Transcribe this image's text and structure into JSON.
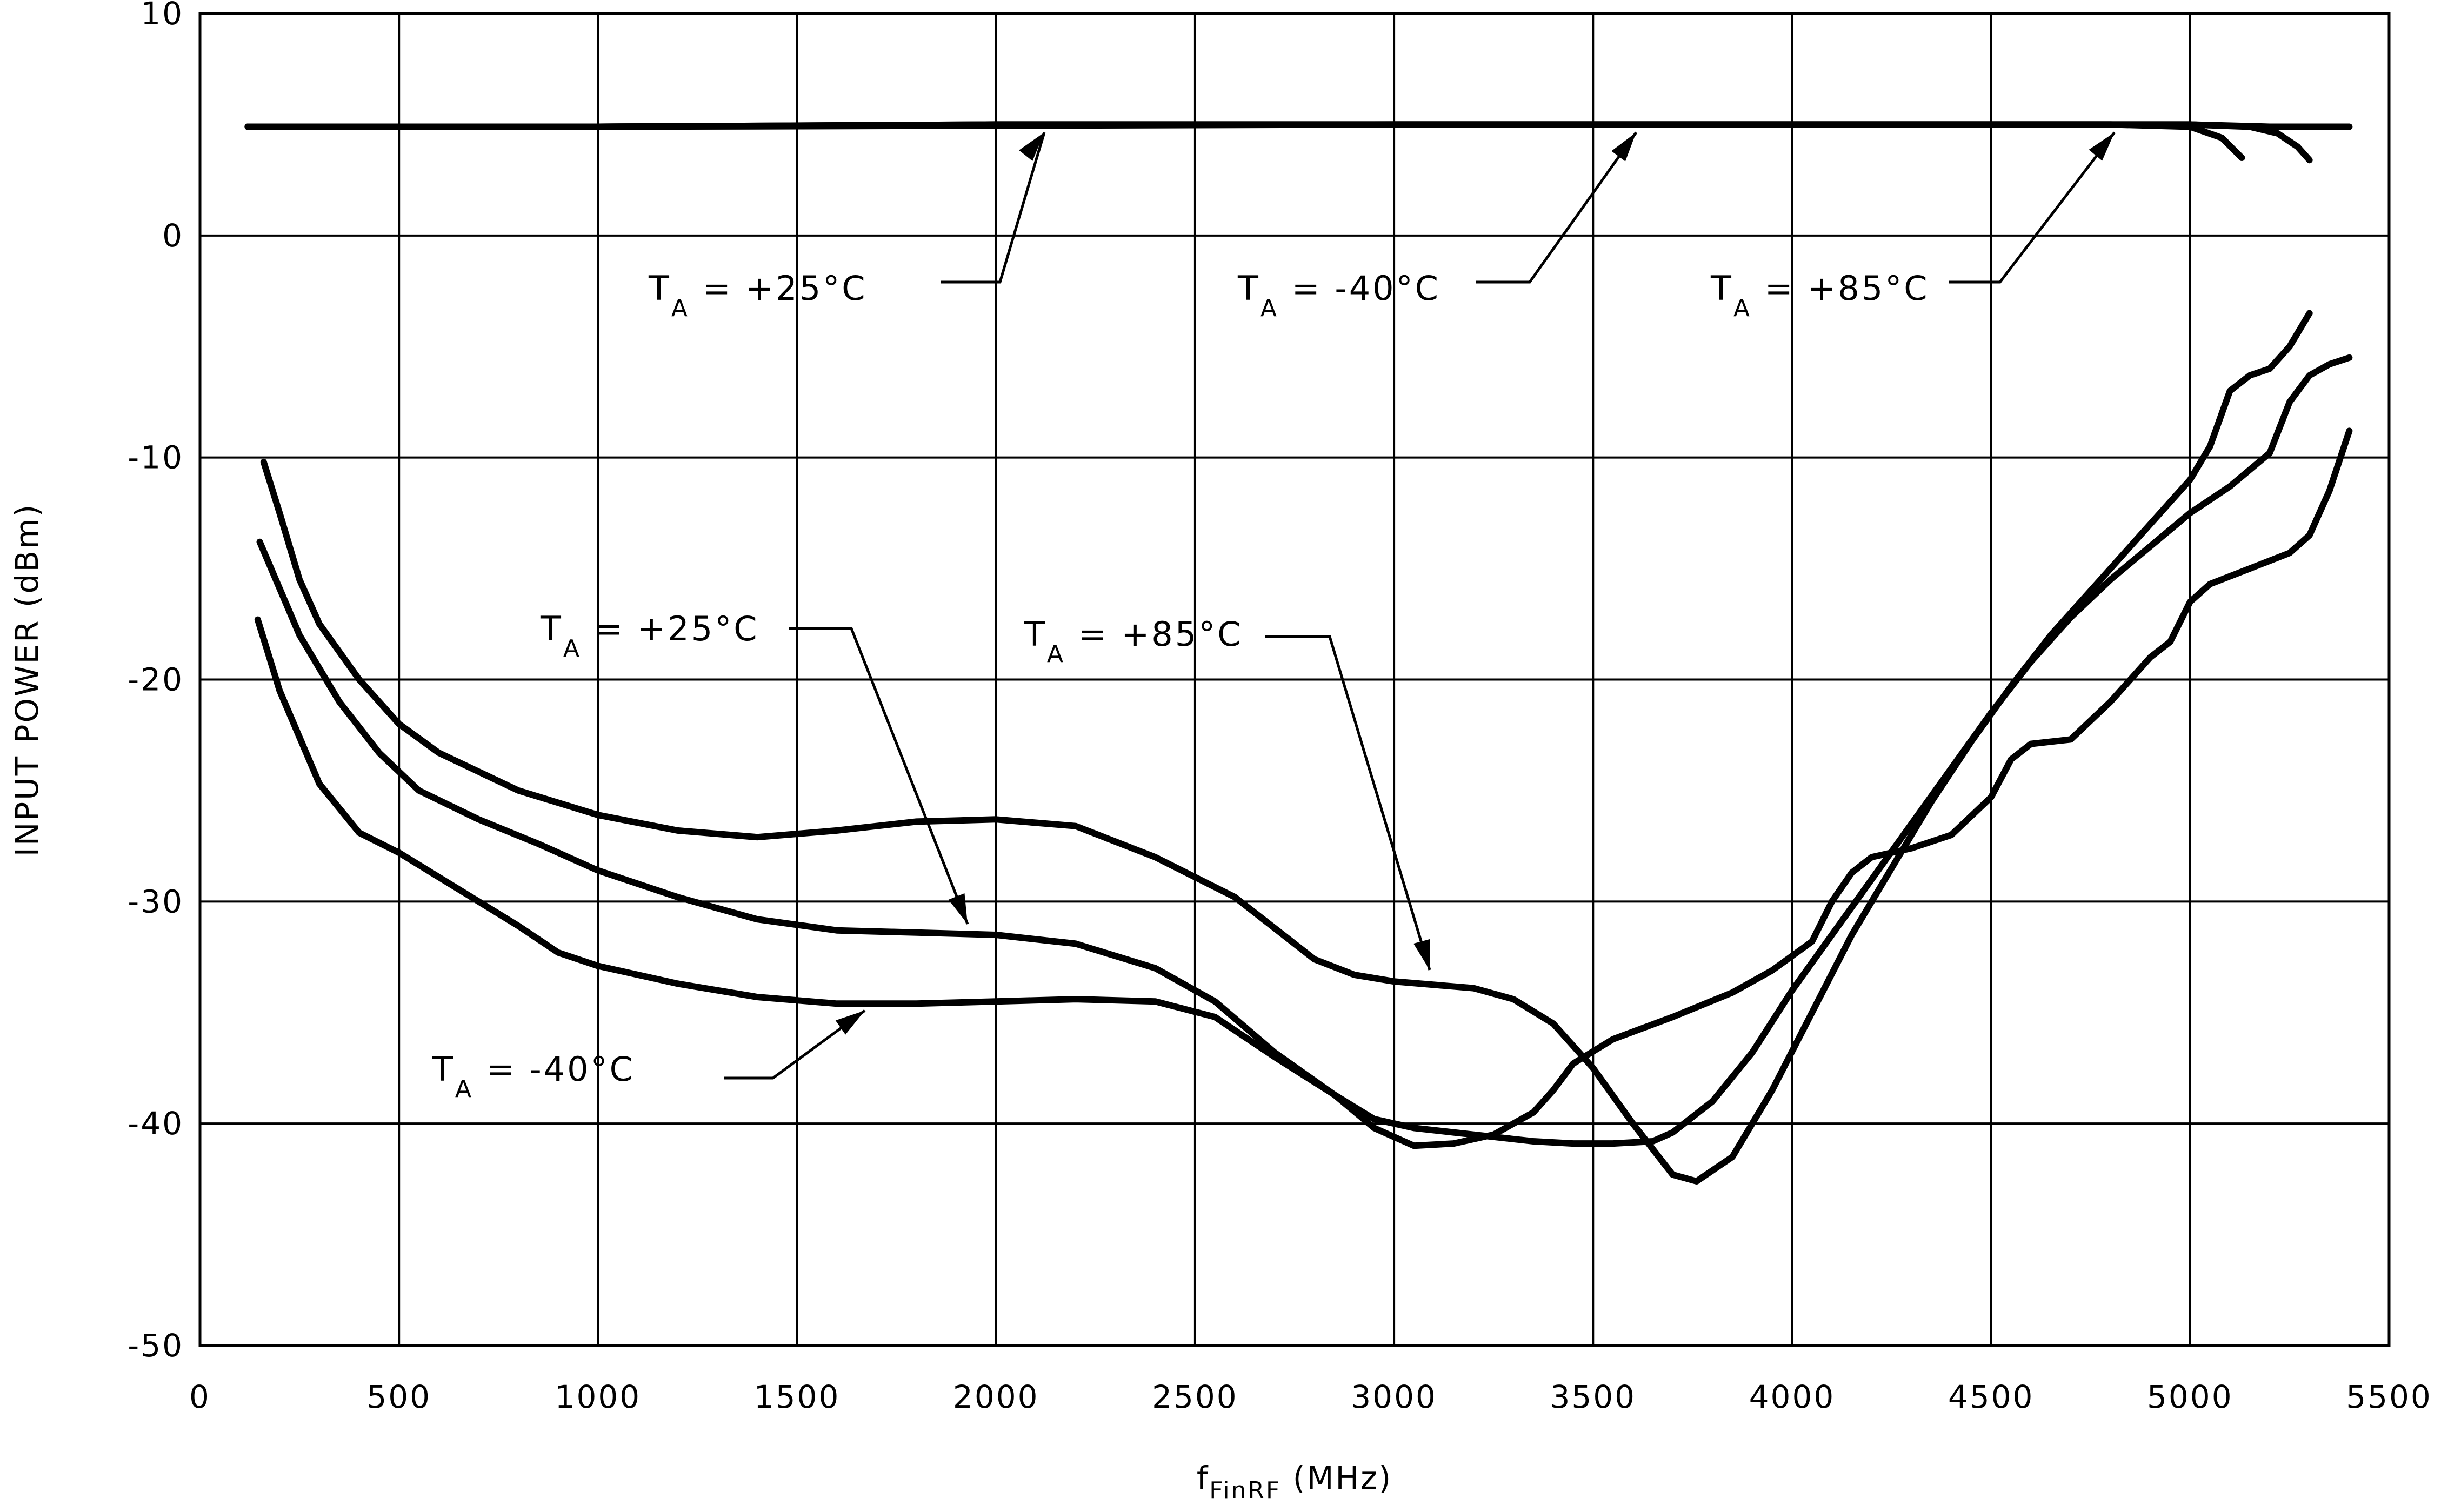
{
  "chart_data": {
    "type": "line",
    "title": "",
    "xlabel": "f",
    "xlabel_sub": "FinRF",
    "xlabel_unit": " (MHz)",
    "ylabel": "INPUT POWER (dBm)",
    "xlim": [
      0,
      5500
    ],
    "ylim": [
      -50,
      10
    ],
    "xticks": [
      0,
      500,
      1000,
      1500,
      2000,
      2500,
      3000,
      3500,
      4000,
      4500,
      5000,
      5500
    ],
    "yticks": [
      -50,
      -40,
      -30,
      -20,
      -10,
      0,
      10
    ],
    "grid": true,
    "series": [
      {
        "group": "upper",
        "temp": "+25°C",
        "x": [
          120,
          500,
          1000,
          1500,
          2000,
          2500,
          3000,
          3500,
          4000,
          4500,
          4800,
          5000,
          5080,
          5130
        ],
        "y": [
          4.9,
          4.9,
          4.9,
          4.95,
          5.0,
          5.0,
          5.0,
          5.0,
          5.0,
          5.0,
          5.0,
          4.9,
          4.4,
          3.5
        ]
      },
      {
        "group": "upper",
        "temp": "-40°C",
        "x": [
          120,
          1000,
          2000,
          3000,
          4000,
          5000,
          5200,
          5400
        ],
        "y": [
          4.9,
          4.9,
          4.95,
          5.0,
          5.0,
          5.0,
          4.9,
          4.9
        ]
      },
      {
        "group": "upper",
        "temp": "+85°C",
        "x": [
          120,
          1000,
          2000,
          3000,
          4000,
          5000,
          5150,
          5220,
          5270,
          5300
        ],
        "y": [
          4.9,
          4.9,
          5.0,
          5.0,
          5.0,
          5.0,
          4.9,
          4.6,
          4.0,
          3.4
        ]
      },
      {
        "group": "lower",
        "temp": "+85°C",
        "x": [
          160,
          200,
          250,
          300,
          400,
          500,
          600,
          800,
          1000,
          1200,
          1400,
          1600,
          1800,
          2000,
          2200,
          2400,
          2600,
          2700,
          2800,
          2900,
          3000,
          3200,
          3300,
          3400,
          3500,
          3600,
          3700,
          3760,
          3850,
          3950,
          4050,
          4150,
          4250,
          4350,
          4450,
          4550,
          4650,
          4750,
          4850,
          4950,
          5000,
          5050,
          5100,
          5150,
          5200,
          5250,
          5300
        ],
        "y": [
          -10.2,
          -12.5,
          -15.5,
          -17.5,
          -20,
          -22,
          -23.3,
          -25,
          -26.1,
          -26.8,
          -27.1,
          -26.8,
          -26.4,
          -26.3,
          -26.6,
          -28,
          -29.8,
          -31.2,
          -32.6,
          -33.3,
          -33.6,
          -33.9,
          -34.4,
          -35.5,
          -37.5,
          -40,
          -42.3,
          -42.6,
          -41.5,
          -38.5,
          -35,
          -31.5,
          -28.5,
          -25.5,
          -22.8,
          -20.3,
          -18,
          -16,
          -14,
          -12,
          -11,
          -9.5,
          -7,
          -6.3,
          -6,
          -5,
          -3.5
        ]
      },
      {
        "group": "lower",
        "temp": "+25°C",
        "x": [
          150,
          250,
          350,
          450,
          550,
          700,
          850,
          1000,
          1200,
          1400,
          1600,
          1800,
          2000,
          2200,
          2400,
          2550,
          2700,
          2850,
          2950,
          3050,
          3150,
          3250,
          3350,
          3450,
          3550,
          3650,
          3700,
          3800,
          3900,
          4000,
          4100,
          4200,
          4300,
          4400,
          4500,
          4600,
          4700,
          4800,
          4900,
          5000,
          5100,
          5200,
          5250,
          5300,
          5350,
          5400
        ],
        "y": [
          -13.8,
          -18,
          -21,
          -23.3,
          -25,
          -26.3,
          -27.4,
          -28.6,
          -29.8,
          -30.8,
          -31.3,
          -31.4,
          -31.5,
          -31.9,
          -33,
          -34.5,
          -36.8,
          -38.7,
          -39.8,
          -40.2,
          -40.4,
          -40.6,
          -40.8,
          -40.9,
          -40.9,
          -40.8,
          -40.4,
          -39,
          -36.8,
          -34,
          -31.5,
          -29,
          -26.5,
          -24,
          -21.5,
          -19.2,
          -17.2,
          -15.5,
          -14,
          -12.5,
          -11.3,
          -9.8,
          -7.5,
          -6.3,
          -5.8,
          -5.5
        ]
      },
      {
        "group": "lower",
        "temp": "-40°C",
        "x": [
          145,
          200,
          300,
          400,
          500,
          600,
          700,
          800,
          900,
          1000,
          1200,
          1400,
          1600,
          1800,
          2000,
          2200,
          2400,
          2550,
          2700,
          2850,
          2950,
          3050,
          3150,
          3250,
          3350,
          3400,
          3450,
          3550,
          3700,
          3850,
          3950,
          4050,
          4100,
          4150,
          4200,
          4300,
          4400,
          4500,
          4550,
          4600,
          4700,
          4800,
          4900,
          4950,
          5000,
          5050,
          5150,
          5250,
          5300,
          5350,
          5400
        ],
        "y": [
          -17.3,
          -20.5,
          -24.7,
          -26.9,
          -27.8,
          -28.9,
          -30,
          -31.1,
          -32.3,
          -32.9,
          -33.7,
          -34.3,
          -34.6,
          -34.6,
          -34.5,
          -34.4,
          -34.5,
          -35.2,
          -37,
          -38.7,
          -40.2,
          -41,
          -40.9,
          -40.5,
          -39.5,
          -38.5,
          -37.3,
          -36.2,
          -35.2,
          -34.1,
          -33.1,
          -31.8,
          -30,
          -28.7,
          -28,
          -27.6,
          -27,
          -25.3,
          -23.6,
          -22.9,
          -22.7,
          -21,
          -19,
          -18.3,
          -16.5,
          -15.7,
          -15,
          -14.3,
          -13.5,
          -11.5,
          -8.8
        ]
      }
    ],
    "annotations": [
      {
        "T": "T",
        "sub": "A",
        "value": " = +25°C"
      },
      {
        "T": "T",
        "sub": "A",
        "value": " = -40°C"
      },
      {
        "T": "T",
        "sub": "A",
        "value": " = +85°C"
      },
      {
        "T": "T",
        "sub": "A",
        "value": " = +25°C"
      },
      {
        "T": "T",
        "sub": "A",
        "value": " = +85°C"
      },
      {
        "T": "T",
        "sub": "A",
        "value": " = -40°C"
      }
    ]
  }
}
